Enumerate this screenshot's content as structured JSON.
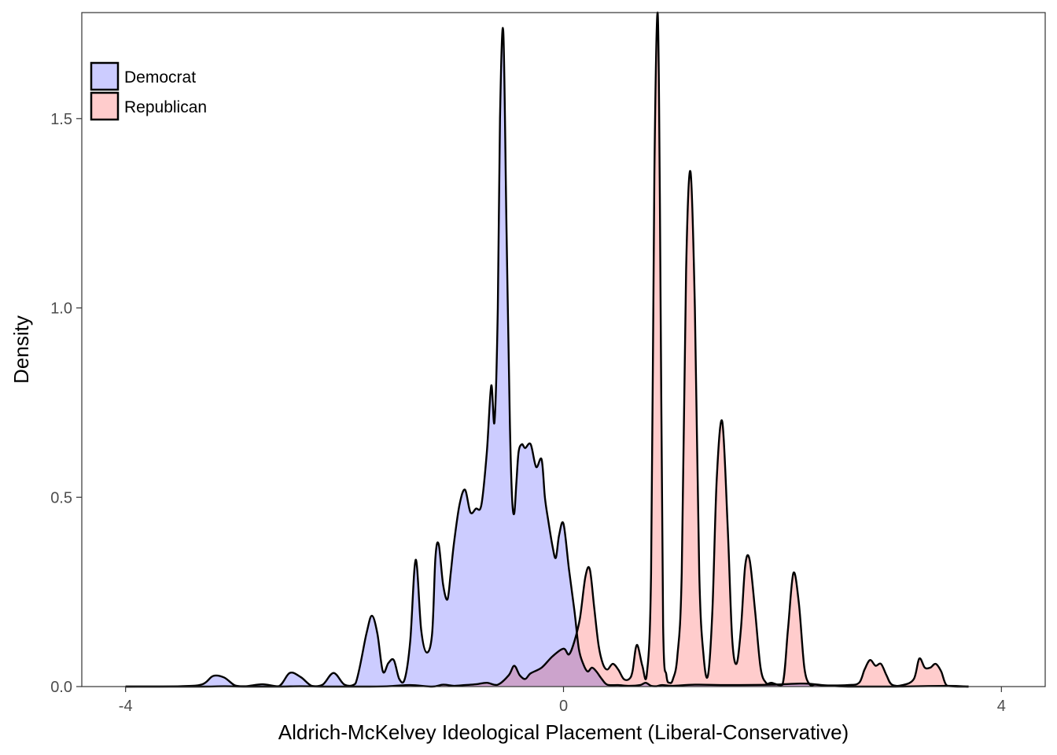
{
  "chart_data": {
    "type": "area",
    "title": "",
    "xlabel": "Aldrich-McKelvey Ideological Placement (Liberal-Conservative)",
    "ylabel": "Density",
    "xlim": [
      -4.4,
      4.4
    ],
    "ylim": [
      0,
      1.78
    ],
    "x_ticks": [
      -4,
      0,
      4
    ],
    "x_tick_labels": [
      "-4",
      "0",
      "4"
    ],
    "y_ticks": [
      0,
      0.5,
      1.0,
      1.5
    ],
    "y_tick_labels": [
      "0.0",
      "0.5",
      "1.0",
      "1.5"
    ],
    "grid": false,
    "legend_position": "top-left",
    "series": [
      {
        "name": "Democrat",
        "color": "#ccccff",
        "x": [
          -4.0,
          -3.5,
          -3.3,
          -3.2,
          -3.1,
          -3.0,
          -2.9,
          -2.75,
          -2.6,
          -2.5,
          -2.4,
          -2.3,
          -2.2,
          -2.1,
          -2.0,
          -1.9,
          -1.8,
          -1.75,
          -1.7,
          -1.65,
          -1.6,
          -1.55,
          -1.5,
          -1.45,
          -1.4,
          -1.35,
          -1.3,
          -1.25,
          -1.2,
          -1.17,
          -1.14,
          -1.1,
          -1.06,
          -1.03,
          -1.0,
          -0.95,
          -0.9,
          -0.85,
          -0.8,
          -0.75,
          -0.7,
          -0.66,
          -0.63,
          -0.6,
          -0.58,
          -0.55,
          -0.52,
          -0.49,
          -0.47,
          -0.45,
          -0.43,
          -0.41,
          -0.38,
          -0.35,
          -0.3,
          -0.25,
          -0.2,
          -0.17,
          -0.14,
          -0.1,
          -0.07,
          -0.04,
          0.0,
          0.05,
          0.1,
          0.14,
          0.18,
          0.22,
          0.26,
          0.3,
          0.35,
          0.4,
          0.5,
          0.6,
          0.7,
          0.75,
          0.8,
          0.85,
          0.9,
          1.0,
          1.2,
          1.5,
          1.9,
          2.2,
          2.4,
          2.6,
          3.0,
          3.5,
          3.7
        ],
        "values": [
          0.0,
          0.001,
          0.006,
          0.028,
          0.024,
          0.003,
          0.001,
          0.006,
          0.001,
          0.036,
          0.025,
          0.002,
          0.005,
          0.036,
          0.005,
          0.008,
          0.14,
          0.187,
          0.14,
          0.04,
          0.062,
          0.07,
          0.02,
          0.02,
          0.12,
          0.335,
          0.15,
          0.09,
          0.14,
          0.34,
          0.376,
          0.27,
          0.23,
          0.3,
          0.38,
          0.48,
          0.52,
          0.46,
          0.47,
          0.48,
          0.62,
          0.795,
          0.7,
          1.0,
          1.5,
          1.73,
          1.2,
          0.7,
          0.5,
          0.457,
          0.54,
          0.62,
          0.64,
          0.63,
          0.64,
          0.58,
          0.6,
          0.5,
          0.44,
          0.37,
          0.34,
          0.4,
          0.43,
          0.31,
          0.2,
          0.1,
          0.06,
          0.04,
          0.05,
          0.04,
          0.02,
          0.005,
          0.004,
          0.002,
          0.004,
          0.01,
          0.002,
          0.001,
          0.004,
          0.002,
          0.005,
          0.004,
          0.005,
          0.008,
          0.003,
          0.0,
          0.0,
          0.002,
          0.0
        ]
      },
      {
        "name": "Republican",
        "color": "#ffcccc",
        "x": [
          -4.0,
          -3.3,
          -3.1,
          -2.9,
          -2.6,
          -2.4,
          -2.2,
          -2.0,
          -1.8,
          -1.6,
          -1.4,
          -1.2,
          -1.1,
          -1.0,
          -0.9,
          -0.8,
          -0.7,
          -0.6,
          -0.5,
          -0.45,
          -0.4,
          -0.35,
          -0.3,
          -0.2,
          -0.1,
          0.0,
          0.05,
          0.1,
          0.15,
          0.2,
          0.24,
          0.28,
          0.32,
          0.36,
          0.4,
          0.45,
          0.5,
          0.55,
          0.6,
          0.63,
          0.67,
          0.72,
          0.76,
          0.8,
          0.83,
          0.86,
          0.88,
          0.91,
          0.94,
          0.97,
          1.0,
          1.04,
          1.08,
          1.12,
          1.16,
          1.2,
          1.24,
          1.28,
          1.32,
          1.36,
          1.4,
          1.45,
          1.5,
          1.54,
          1.58,
          1.62,
          1.66,
          1.7,
          1.75,
          1.8,
          1.85,
          1.9,
          2.0,
          2.05,
          2.1,
          2.15,
          2.2,
          2.25,
          2.3,
          2.4,
          2.6,
          2.7,
          2.75,
          2.8,
          2.85,
          2.9,
          2.95,
          3.0,
          3.1,
          3.2,
          3.25,
          3.3,
          3.35,
          3.4,
          3.45,
          3.5,
          3.6,
          3.7
        ],
        "values": [
          0.0,
          0.0,
          0.001,
          0.0,
          0.0,
          0.001,
          0.0,
          0.0,
          0.0,
          0.001,
          0.004,
          0.0,
          0.005,
          0.002,
          0.004,
          0.006,
          0.01,
          0.005,
          0.03,
          0.055,
          0.03,
          0.02,
          0.035,
          0.05,
          0.08,
          0.1,
          0.085,
          0.12,
          0.18,
          0.29,
          0.31,
          0.21,
          0.11,
          0.06,
          0.045,
          0.06,
          0.045,
          0.02,
          0.02,
          0.04,
          0.11,
          0.055,
          0.03,
          0.3,
          1.35,
          1.78,
          1.3,
          0.16,
          0.03,
          0.01,
          0.02,
          0.08,
          0.3,
          1.1,
          1.36,
          1.0,
          0.3,
          0.08,
          0.03,
          0.2,
          0.55,
          0.7,
          0.42,
          0.13,
          0.06,
          0.15,
          0.32,
          0.335,
          0.2,
          0.05,
          0.01,
          0.01,
          0.005,
          0.15,
          0.3,
          0.22,
          0.05,
          0.005,
          0.005,
          0.003,
          0.004,
          0.01,
          0.045,
          0.07,
          0.055,
          0.06,
          0.03,
          0.005,
          0.004,
          0.02,
          0.074,
          0.05,
          0.05,
          0.06,
          0.04,
          0.003,
          0.0,
          0.0
        ]
      }
    ]
  }
}
